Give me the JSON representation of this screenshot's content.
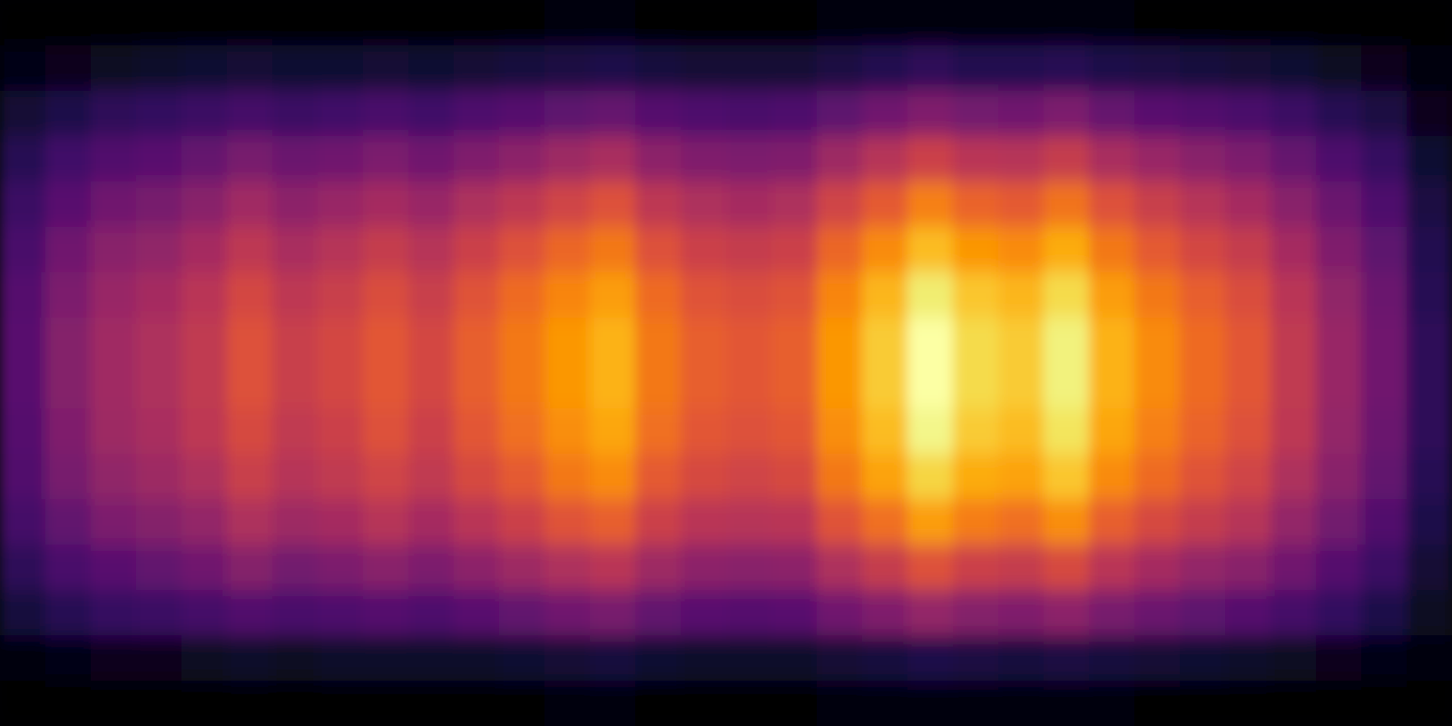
{
  "chart_data": {
    "type": "heatmap",
    "color": "inferno",
    "tick_labels": false,
    "cells": [
      [
        0.01,
        0.01,
        0.01,
        0.01,
        0.01,
        0.01,
        0.01,
        0.01,
        0.01,
        0.01,
        0.01,
        0.01,
        0.02,
        0.02,
        0.01,
        0.01,
        0.01,
        0.01,
        0.02,
        0.02,
        0.02,
        0.02,
        0.02,
        0.02,
        0.02,
        0.01,
        0.01,
        0.01,
        0.01,
        0.01,
        0.01,
        0.0
      ],
      [
        0.04,
        0.05,
        0.06,
        0.07,
        0.08,
        0.09,
        0.08,
        0.08,
        0.09,
        0.08,
        0.09,
        0.1,
        0.11,
        0.12,
        0.1,
        0.09,
        0.09,
        0.09,
        0.11,
        0.13,
        0.15,
        0.13,
        0.13,
        0.14,
        0.12,
        0.11,
        0.1,
        0.09,
        0.08,
        0.06,
        0.05,
        0.02
      ],
      [
        0.09,
        0.12,
        0.15,
        0.16,
        0.18,
        0.2,
        0.18,
        0.19,
        0.21,
        0.19,
        0.22,
        0.24,
        0.26,
        0.28,
        0.24,
        0.22,
        0.21,
        0.22,
        0.26,
        0.3,
        0.34,
        0.31,
        0.3,
        0.33,
        0.28,
        0.25,
        0.23,
        0.21,
        0.18,
        0.14,
        0.11,
        0.05
      ],
      [
        0.14,
        0.19,
        0.23,
        0.25,
        0.28,
        0.32,
        0.29,
        0.3,
        0.33,
        0.3,
        0.34,
        0.37,
        0.41,
        0.44,
        0.37,
        0.34,
        0.33,
        0.34,
        0.41,
        0.47,
        0.53,
        0.48,
        0.47,
        0.51,
        0.44,
        0.4,
        0.36,
        0.33,
        0.28,
        0.22,
        0.17,
        0.08
      ],
      [
        0.18,
        0.25,
        0.3,
        0.32,
        0.36,
        0.42,
        0.37,
        0.4,
        0.43,
        0.4,
        0.45,
        0.49,
        0.54,
        0.58,
        0.49,
        0.45,
        0.43,
        0.45,
        0.54,
        0.61,
        0.7,
        0.63,
        0.61,
        0.67,
        0.58,
        0.52,
        0.47,
        0.43,
        0.36,
        0.29,
        0.22,
        0.11
      ],
      [
        0.21,
        0.3,
        0.36,
        0.38,
        0.43,
        0.49,
        0.44,
        0.47,
        0.51,
        0.47,
        0.53,
        0.58,
        0.64,
        0.68,
        0.58,
        0.53,
        0.51,
        0.53,
        0.64,
        0.72,
        0.82,
        0.75,
        0.72,
        0.79,
        0.68,
        0.61,
        0.55,
        0.51,
        0.43,
        0.34,
        0.26,
        0.13
      ],
      [
        0.24,
        0.33,
        0.4,
        0.43,
        0.48,
        0.55,
        0.49,
        0.52,
        0.57,
        0.52,
        0.59,
        0.65,
        0.71,
        0.76,
        0.65,
        0.59,
        0.57,
        0.59,
        0.71,
        0.81,
        0.92,
        0.84,
        0.81,
        0.88,
        0.76,
        0.68,
        0.62,
        0.57,
        0.48,
        0.38,
        0.29,
        0.14
      ],
      [
        0.25,
        0.35,
        0.42,
        0.45,
        0.5,
        0.58,
        0.52,
        0.55,
        0.6,
        0.55,
        0.62,
        0.68,
        0.75,
        0.8,
        0.68,
        0.62,
        0.6,
        0.62,
        0.75,
        0.85,
        0.97,
        0.88,
        0.85,
        0.93,
        0.8,
        0.72,
        0.65,
        0.6,
        0.5,
        0.4,
        0.3,
        0.15
      ],
      [
        0.25,
        0.35,
        0.42,
        0.45,
        0.5,
        0.58,
        0.52,
        0.55,
        0.6,
        0.55,
        0.62,
        0.68,
        0.75,
        0.8,
        0.68,
        0.62,
        0.6,
        0.62,
        0.75,
        0.85,
        0.97,
        0.88,
        0.85,
        0.93,
        0.8,
        0.72,
        0.65,
        0.6,
        0.5,
        0.4,
        0.3,
        0.15
      ],
      [
        0.24,
        0.34,
        0.41,
        0.44,
        0.49,
        0.56,
        0.5,
        0.53,
        0.58,
        0.53,
        0.6,
        0.66,
        0.73,
        0.78,
        0.66,
        0.6,
        0.58,
        0.6,
        0.73,
        0.82,
        0.94,
        0.85,
        0.82,
        0.9,
        0.78,
        0.7,
        0.63,
        0.58,
        0.49,
        0.39,
        0.29,
        0.15
      ],
      [
        0.23,
        0.32,
        0.38,
        0.41,
        0.45,
        0.52,
        0.47,
        0.5,
        0.54,
        0.5,
        0.56,
        0.61,
        0.68,
        0.72,
        0.61,
        0.56,
        0.54,
        0.56,
        0.68,
        0.77,
        0.87,
        0.79,
        0.77,
        0.84,
        0.72,
        0.65,
        0.59,
        0.54,
        0.45,
        0.36,
        0.27,
        0.14
      ],
      [
        0.2,
        0.27,
        0.33,
        0.35,
        0.39,
        0.45,
        0.41,
        0.43,
        0.47,
        0.43,
        0.48,
        0.53,
        0.59,
        0.62,
        0.53,
        0.48,
        0.47,
        0.48,
        0.59,
        0.66,
        0.76,
        0.69,
        0.66,
        0.73,
        0.62,
        0.56,
        0.51,
        0.47,
        0.39,
        0.31,
        0.23,
        0.12
      ],
      [
        0.15,
        0.21,
        0.25,
        0.27,
        0.3,
        0.35,
        0.31,
        0.33,
        0.36,
        0.33,
        0.37,
        0.41,
        0.45,
        0.48,
        0.41,
        0.37,
        0.36,
        0.37,
        0.45,
        0.51,
        0.58,
        0.53,
        0.51,
        0.56,
        0.48,
        0.43,
        0.39,
        0.36,
        0.3,
        0.24,
        0.18,
        0.09
      ],
      [
        0.1,
        0.14,
        0.17,
        0.18,
        0.2,
        0.23,
        0.21,
        0.22,
        0.24,
        0.22,
        0.25,
        0.27,
        0.3,
        0.32,
        0.27,
        0.25,
        0.24,
        0.25,
        0.3,
        0.34,
        0.39,
        0.35,
        0.34,
        0.37,
        0.32,
        0.29,
        0.26,
        0.24,
        0.2,
        0.16,
        0.12,
        0.06
      ],
      [
        0.03,
        0.04,
        0.05,
        0.05,
        0.06,
        0.07,
        0.06,
        0.07,
        0.07,
        0.07,
        0.07,
        0.08,
        0.09,
        0.1,
        0.08,
        0.07,
        0.07,
        0.07,
        0.09,
        0.1,
        0.12,
        0.11,
        0.1,
        0.11,
        0.1,
        0.09,
        0.08,
        0.07,
        0.06,
        0.05,
        0.04,
        0.02
      ],
      [
        0.01,
        0.01,
        0.01,
        0.01,
        0.01,
        0.01,
        0.01,
        0.01,
        0.01,
        0.01,
        0.01,
        0.01,
        0.02,
        0.02,
        0.01,
        0.01,
        0.01,
        0.01,
        0.02,
        0.02,
        0.02,
        0.02,
        0.02,
        0.02,
        0.02,
        0.01,
        0.01,
        0.01,
        0.01,
        0.01,
        0.01,
        0.0
      ]
    ]
  }
}
